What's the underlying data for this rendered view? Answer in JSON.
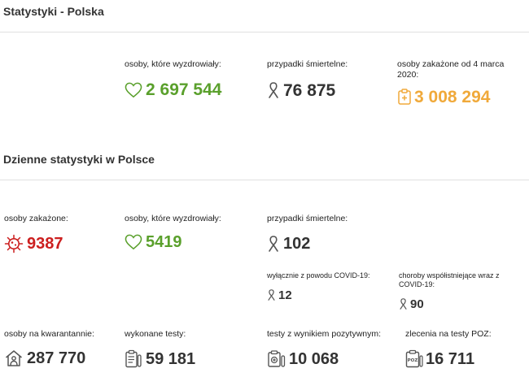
{
  "poland": {
    "title": "Statystyki - Polska",
    "recovered": {
      "label": "osoby, które wyzdrowiały:",
      "value": "2 697 544"
    },
    "deaths": {
      "label": "przypadki śmiertelne:",
      "value": "76 875"
    },
    "infected": {
      "label": "osoby zakażone od 4 marca 2020:",
      "value": "3 008 294"
    }
  },
  "daily": {
    "title": "Dzienne statystyki w Polsce",
    "infected": {
      "label": "osoby zakażone:",
      "value": "9387"
    },
    "recovered": {
      "label": "osoby, które wyzdrowiały:",
      "value": "5419"
    },
    "deaths": {
      "label": "przypadki śmiertelne:",
      "value": "102"
    },
    "covid_only": {
      "label": "wyłącznie z powodu COVID-19:",
      "value": "12"
    },
    "comorbid": {
      "label": "choroby współistniejące wraz z COVID-19:",
      "value": "90"
    },
    "quarantine": {
      "label": "osoby na kwarantannie:",
      "value": "287 770"
    },
    "tests": {
      "label": "wykonane testy:",
      "value": "59 181"
    },
    "positive_tests": {
      "label": "testy z wynikiem pozytywnym:",
      "value": "10 068"
    },
    "poz_orders": {
      "label": "zlecenia na testy POZ:",
      "value": "16 711",
      "icon_text": "POZ"
    }
  },
  "colors": {
    "green": "#5aa02c",
    "red": "#cc1f1f",
    "orange": "#f0a93a",
    "dark": "#333333"
  }
}
